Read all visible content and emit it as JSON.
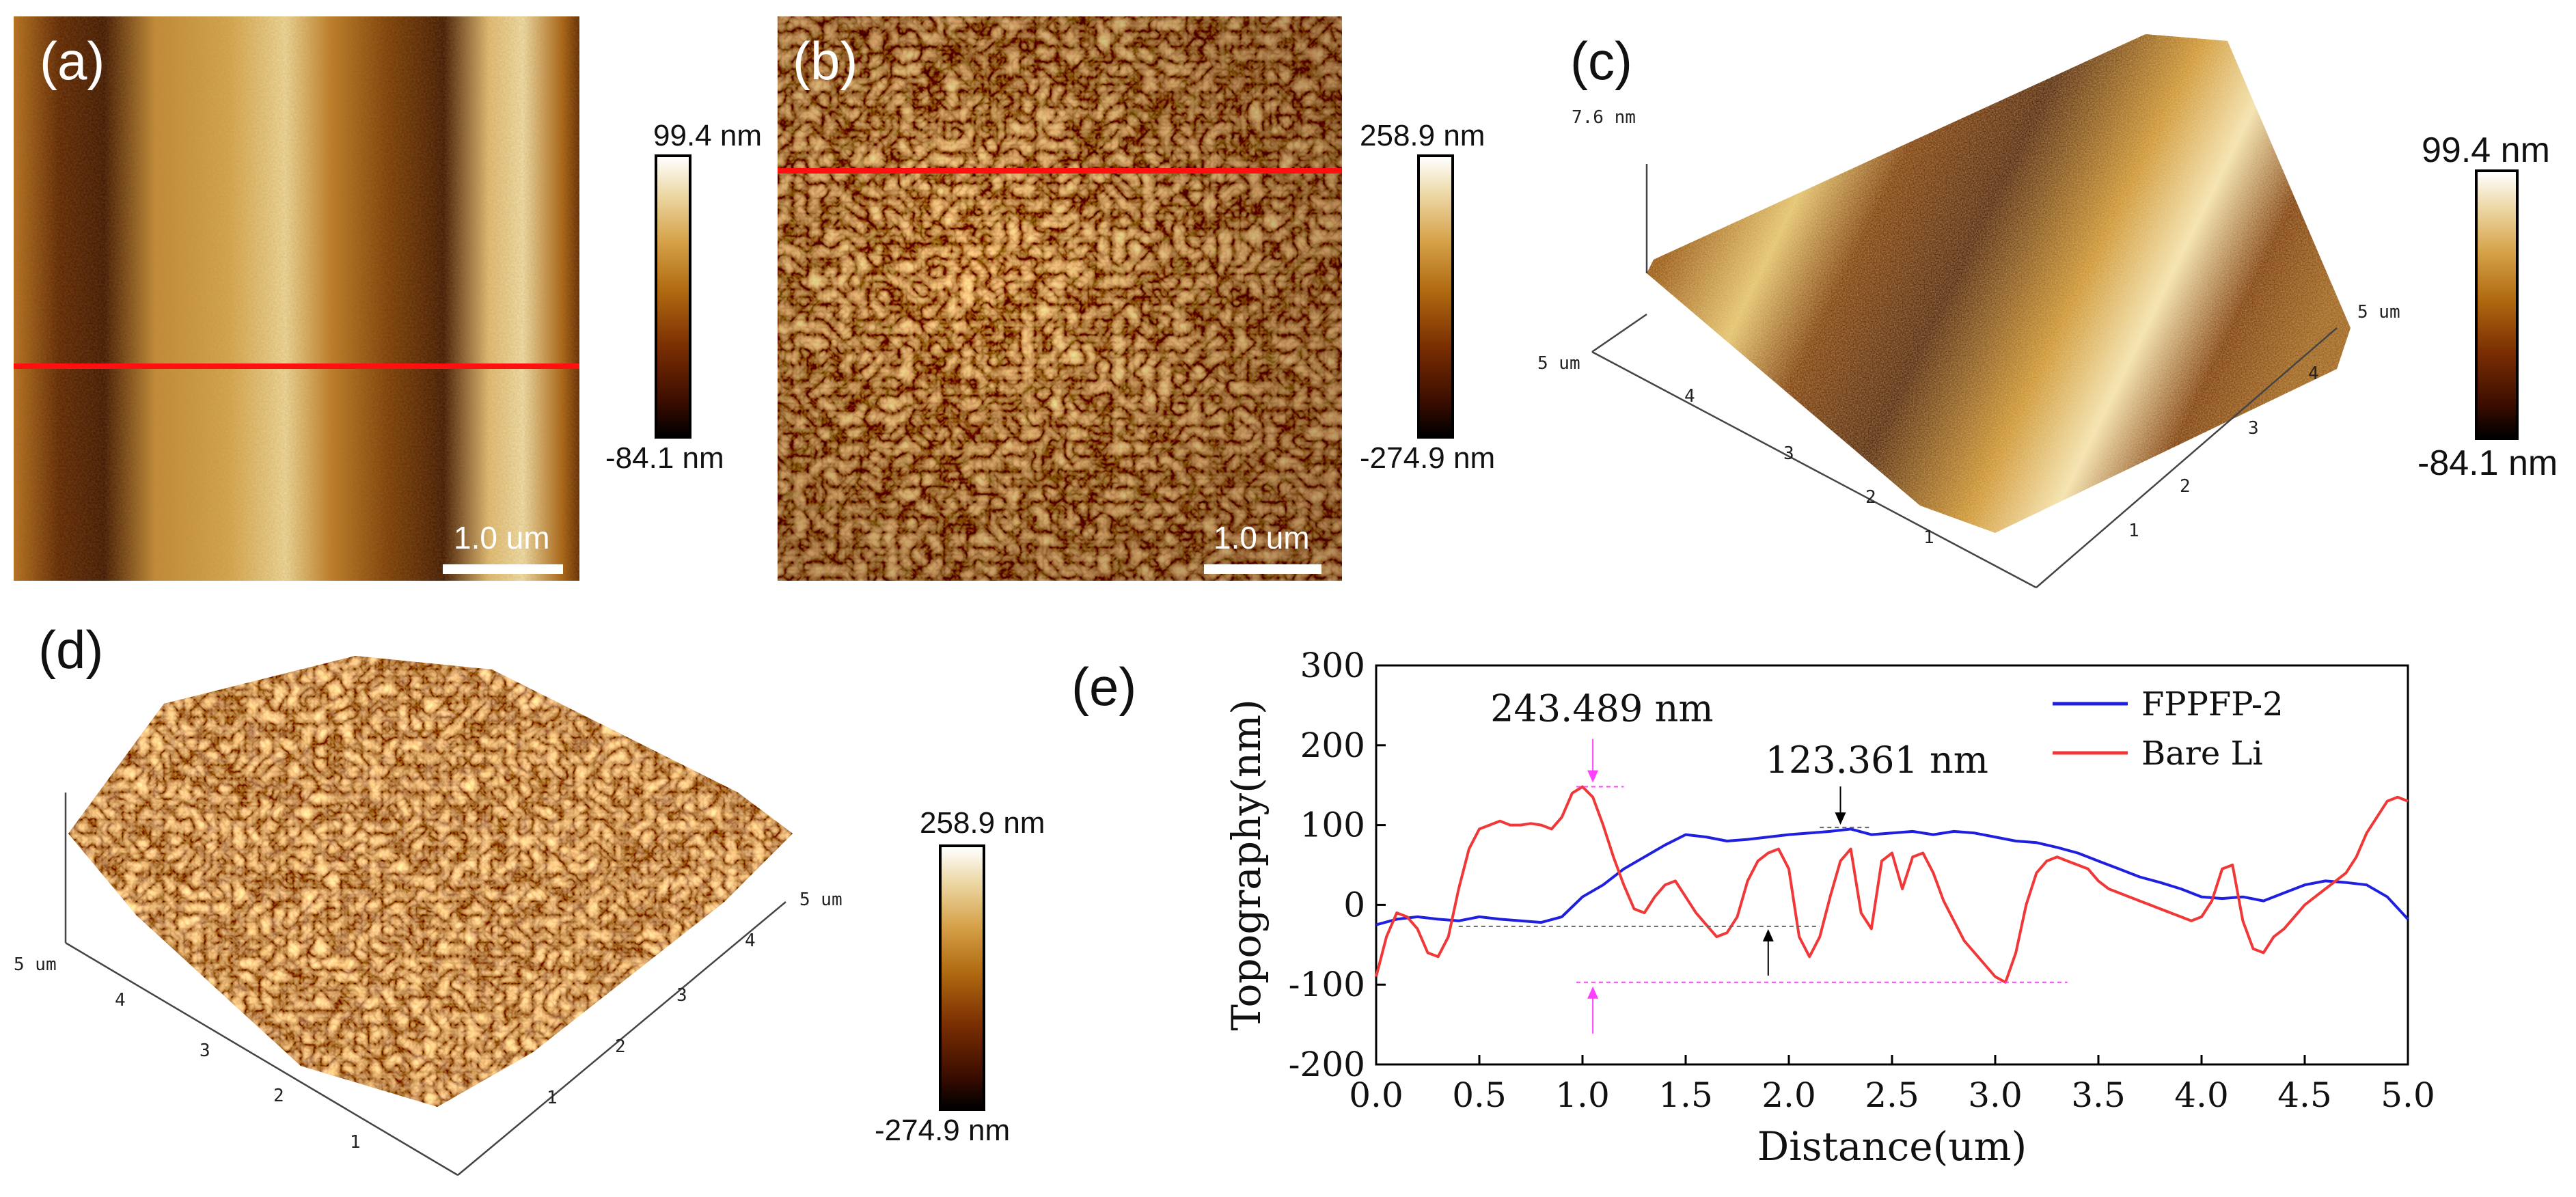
{
  "panels": {
    "a": {
      "label": "(a)",
      "scale_bar": "1.0 um",
      "cbar_max": "99.4 nm",
      "cbar_min": "-84.1 nm"
    },
    "b": {
      "label": "(b)",
      "scale_bar": "1.0 um",
      "cbar_max": "258.9 nm",
      "cbar_min": "-274.9 nm"
    },
    "c": {
      "label": "(c)",
      "cbar_max": "99.4 nm",
      "cbar_min": "-84.1 nm",
      "z_label": "7.6 nm",
      "x_end": "5 um",
      "y_end": "5 um",
      "ticks": [
        "1",
        "2",
        "3",
        "4"
      ]
    },
    "d": {
      "label": "(d)",
      "cbar_max": "258.9 nm",
      "cbar_min": "-274.9 nm",
      "x_end": "5 um",
      "y_end": "5 um",
      "ticks": [
        "1",
        "2",
        "3",
        "4"
      ]
    },
    "e": {
      "label": "(e)"
    }
  },
  "colors": {
    "fppfp": "#1f1fe0",
    "bare": "#f03838",
    "redline": "#ff1010",
    "magenta": "#ff40ff"
  },
  "chart_data": {
    "type": "line",
    "title": "",
    "xlabel": "Distance(um)",
    "ylabel": "Topography(nm)",
    "xlim": [
      0.0,
      5.0
    ],
    "ylim": [
      -200,
      300
    ],
    "xticks": [
      "0.0",
      "0.5",
      "1.0",
      "1.5",
      "2.0",
      "2.5",
      "3.0",
      "3.5",
      "4.0",
      "4.5",
      "5.0"
    ],
    "yticks": [
      "-200",
      "-100",
      "0",
      "100",
      "200",
      "300"
    ],
    "legend_position": "top-right",
    "annotations": [
      {
        "text": "243.489 nm",
        "x": 1.05,
        "y_top": 148,
        "y_bottom": -97
      },
      {
        "text": "123.361 nm",
        "x": 2.25,
        "y_top": 97,
        "y_bottom": -27
      }
    ],
    "series": [
      {
        "name": "FPPFP-2",
        "x": [
          0.0,
          0.1,
          0.2,
          0.3,
          0.4,
          0.5,
          0.6,
          0.7,
          0.8,
          0.9,
          1.0,
          1.1,
          1.2,
          1.3,
          1.4,
          1.5,
          1.6,
          1.7,
          1.8,
          1.9,
          2.0,
          2.1,
          2.2,
          2.3,
          2.4,
          2.5,
          2.6,
          2.7,
          2.8,
          2.9,
          3.0,
          3.1,
          3.2,
          3.3,
          3.4,
          3.5,
          3.6,
          3.7,
          3.8,
          3.9,
          4.0,
          4.1,
          4.2,
          4.3,
          4.4,
          4.5,
          4.6,
          4.7,
          4.8,
          4.9,
          5.0
        ],
        "y": [
          -25,
          -18,
          -15,
          -18,
          -20,
          -15,
          -18,
          -20,
          -22,
          -15,
          10,
          25,
          45,
          60,
          75,
          88,
          85,
          80,
          82,
          85,
          88,
          90,
          92,
          95,
          88,
          90,
          92,
          88,
          92,
          90,
          85,
          80,
          78,
          72,
          65,
          55,
          45,
          35,
          28,
          20,
          10,
          8,
          10,
          5,
          15,
          25,
          30,
          28,
          25,
          10,
          -18
        ]
      },
      {
        "name": "Bare Li",
        "x": [
          0.0,
          0.05,
          0.1,
          0.15,
          0.2,
          0.25,
          0.3,
          0.35,
          0.4,
          0.45,
          0.5,
          0.55,
          0.6,
          0.65,
          0.7,
          0.75,
          0.8,
          0.85,
          0.9,
          0.95,
          1.0,
          1.05,
          1.1,
          1.15,
          1.2,
          1.25,
          1.3,
          1.35,
          1.4,
          1.45,
          1.5,
          1.55,
          1.6,
          1.65,
          1.7,
          1.75,
          1.8,
          1.85,
          1.9,
          1.95,
          2.0,
          2.05,
          2.1,
          2.15,
          2.2,
          2.25,
          2.3,
          2.35,
          2.4,
          2.45,
          2.5,
          2.55,
          2.6,
          2.65,
          2.7,
          2.75,
          2.8,
          2.85,
          2.9,
          2.95,
          3.0,
          3.05,
          3.1,
          3.15,
          3.2,
          3.25,
          3.3,
          3.35,
          3.4,
          3.45,
          3.5,
          3.55,
          3.6,
          3.65,
          3.7,
          3.75,
          3.8,
          3.85,
          3.9,
          3.95,
          4.0,
          4.05,
          4.1,
          4.15,
          4.2,
          4.25,
          4.3,
          4.35,
          4.4,
          4.45,
          4.5,
          4.55,
          4.6,
          4.65,
          4.7,
          4.75,
          4.8,
          4.85,
          4.9,
          4.95,
          5.0
        ],
        "y": [
          -90,
          -40,
          -10,
          -15,
          -30,
          -60,
          -65,
          -40,
          20,
          70,
          95,
          100,
          105,
          100,
          100,
          102,
          100,
          95,
          110,
          140,
          148,
          135,
          100,
          60,
          25,
          -5,
          -10,
          10,
          25,
          30,
          10,
          -10,
          -25,
          -40,
          -35,
          -15,
          30,
          55,
          65,
          70,
          45,
          -40,
          -65,
          -40,
          10,
          55,
          70,
          -10,
          -30,
          55,
          65,
          20,
          60,
          65,
          40,
          5,
          -20,
          -45,
          -60,
          -75,
          -90,
          -97,
          -60,
          0,
          40,
          55,
          60,
          55,
          50,
          45,
          30,
          20,
          15,
          10,
          5,
          0,
          -5,
          -10,
          -15,
          -20,
          -15,
          5,
          45,
          50,
          -20,
          -55,
          -60,
          -40,
          -30,
          -15,
          0,
          10,
          20,
          30,
          40,
          60,
          90,
          110,
          130,
          135,
          130
        ]
      }
    ]
  }
}
